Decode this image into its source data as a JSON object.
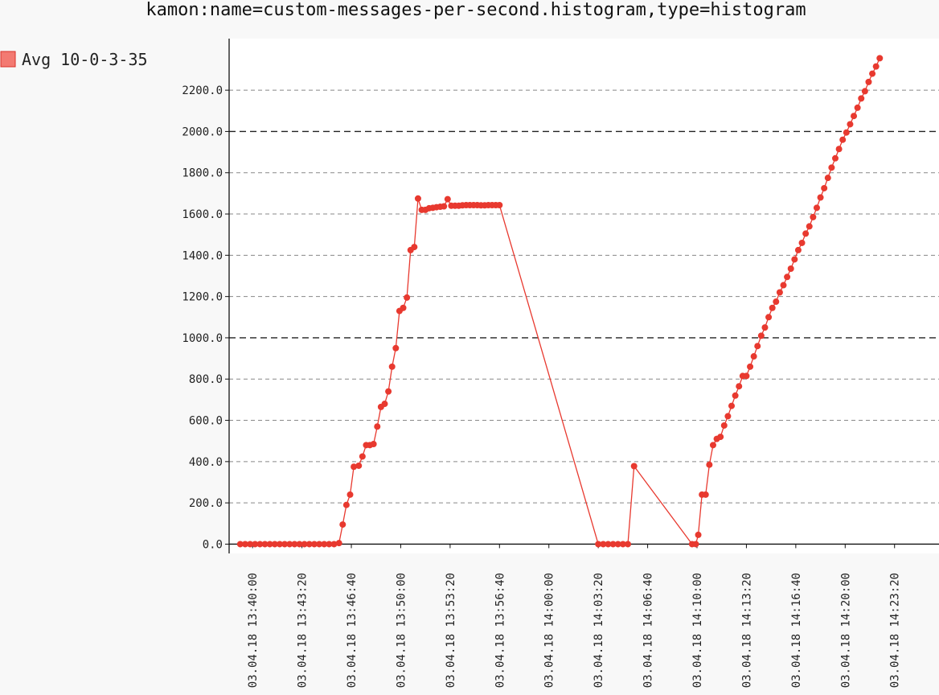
{
  "chart_data": {
    "type": "line",
    "title": "kamon:name=custom-messages-per-second.histogram,type=histogram",
    "xlabel": "",
    "ylabel": "",
    "ylim": [
      -45,
      2450
    ],
    "x_range": [
      "03.04.18 13:38:25",
      "03.04.18 14:26:20"
    ],
    "legend_position": "top-left",
    "grid": true,
    "y_ticks": [
      0,
      200,
      400,
      600,
      800,
      1000,
      1200,
      1400,
      1600,
      1800,
      2000,
      2200
    ],
    "y_tick_labels": [
      "0.0",
      "200.0",
      "400.0",
      "600.0",
      "800.0",
      "1000.0",
      "1200.0",
      "1400.0",
      "1600.0",
      "1800.0",
      "2000.0",
      "2200.0"
    ],
    "x_ticks": [
      "03.04.18 13:40:00",
      "03.04.18 13:43:20",
      "03.04.18 13:46:40",
      "03.04.18 13:50:00",
      "03.04.18 13:53:20",
      "03.04.18 13:56:40",
      "03.04.18 14:00:00",
      "03.04.18 14:03:20",
      "03.04.18 14:06:40",
      "03.04.18 14:10:00",
      "03.04.18 14:13:20",
      "03.04.18 14:16:40",
      "03.04.18 14:20:00",
      "03.04.18 14:23:20"
    ],
    "series": [
      {
        "name": "Avg 10-0-3-35",
        "color": "#e8392f",
        "legend_swatch": "#f37a72",
        "points": [
          [
            "03.04.18 13:39:10",
            0
          ],
          [
            "03.04.18 13:39:30",
            0
          ],
          [
            "03.04.18 13:39:50",
            0
          ],
          [
            "03.04.18 13:40:10",
            0
          ],
          [
            "03.04.18 13:40:30",
            0
          ],
          [
            "03.04.18 13:40:50",
            0
          ],
          [
            "03.04.18 13:41:10",
            0
          ],
          [
            "03.04.18 13:41:30",
            0
          ],
          [
            "03.04.18 13:41:50",
            0
          ],
          [
            "03.04.18 13:42:10",
            0
          ],
          [
            "03.04.18 13:42:30",
            0
          ],
          [
            "03.04.18 13:42:50",
            0
          ],
          [
            "03.04.18 13:43:10",
            0
          ],
          [
            "03.04.18 13:43:30",
            0
          ],
          [
            "03.04.18 13:43:50",
            0
          ],
          [
            "03.04.18 13:44:10",
            0
          ],
          [
            "03.04.18 13:44:30",
            0
          ],
          [
            "03.04.18 13:44:50",
            0
          ],
          [
            "03.04.18 13:45:10",
            0
          ],
          [
            "03.04.18 13:45:30",
            0
          ],
          [
            "03.04.18 13:45:50",
            5
          ],
          [
            "03.04.18 13:46:05",
            95
          ],
          [
            "03.04.18 13:46:20",
            190
          ],
          [
            "03.04.18 13:46:35",
            240
          ],
          [
            "03.04.18 13:46:50",
            375
          ],
          [
            "03.04.18 13:47:10",
            380
          ],
          [
            "03.04.18 13:47:25",
            425
          ],
          [
            "03.04.18 13:47:40",
            480
          ],
          [
            "03.04.18 13:47:55",
            480
          ],
          [
            "03.04.18 13:48:10",
            485
          ],
          [
            "03.04.18 13:48:25",
            570
          ],
          [
            "03.04.18 13:48:40",
            665
          ],
          [
            "03.04.18 13:48:55",
            680
          ],
          [
            "03.04.18 13:49:10",
            740
          ],
          [
            "03.04.18 13:49:25",
            860
          ],
          [
            "03.04.18 13:49:40",
            950
          ],
          [
            "03.04.18 13:49:55",
            1130
          ],
          [
            "03.04.18 13:50:10",
            1145
          ],
          [
            "03.04.18 13:50:25",
            1195
          ],
          [
            "03.04.18 13:50:40",
            1425
          ],
          [
            "03.04.18 13:50:55",
            1440
          ],
          [
            "03.04.18 13:51:10",
            1675
          ],
          [
            "03.04.18 13:51:25",
            1620
          ],
          [
            "03.04.18 13:51:40",
            1620
          ],
          [
            "03.04.18 13:51:55",
            1628
          ],
          [
            "03.04.18 13:52:10",
            1630
          ],
          [
            "03.04.18 13:52:25",
            1633
          ],
          [
            "03.04.18 13:52:40",
            1635
          ],
          [
            "03.04.18 13:52:55",
            1637
          ],
          [
            "03.04.18 13:53:10",
            1672
          ],
          [
            "03.04.18 13:53:25",
            1640
          ],
          [
            "03.04.18 13:53:40",
            1640
          ],
          [
            "03.04.18 13:53:55",
            1640
          ],
          [
            "03.04.18 13:54:10",
            1642
          ],
          [
            "03.04.18 13:54:25",
            1643
          ],
          [
            "03.04.18 13:54:40",
            1643
          ],
          [
            "03.04.18 13:54:55",
            1643
          ],
          [
            "03.04.18 13:55:10",
            1643
          ],
          [
            "03.04.18 13:55:25",
            1642
          ],
          [
            "03.04.18 13:55:40",
            1642
          ],
          [
            "03.04.18 13:55:55",
            1643
          ],
          [
            "03.04.18 13:56:10",
            1643
          ],
          [
            "03.04.18 13:56:25",
            1643
          ],
          [
            "03.04.18 13:56:40",
            1643
          ],
          [
            "03.04.18 14:03:20",
            0
          ],
          [
            "03.04.18 14:03:40",
            0
          ],
          [
            "03.04.18 14:04:00",
            0
          ],
          [
            "03.04.18 14:04:20",
            0
          ],
          [
            "03.04.18 14:04:40",
            0
          ],
          [
            "03.04.18 14:05:00",
            0
          ],
          [
            "03.04.18 14:05:20",
            0
          ],
          [
            "03.04.18 14:05:45",
            378
          ],
          [
            "03.04.18 14:09:40",
            0
          ],
          [
            "03.04.18 14:09:55",
            0
          ],
          [
            "03.04.18 14:10:05",
            45
          ],
          [
            "03.04.18 14:10:20",
            240
          ],
          [
            "03.04.18 14:10:35",
            240
          ],
          [
            "03.04.18 14:10:50",
            385
          ],
          [
            "03.04.18 14:11:05",
            480
          ],
          [
            "03.04.18 14:11:20",
            510
          ],
          [
            "03.04.18 14:11:35",
            520
          ],
          [
            "03.04.18 14:11:50",
            575
          ],
          [
            "03.04.18 14:12:05",
            620
          ],
          [
            "03.04.18 14:12:20",
            670
          ],
          [
            "03.04.18 14:12:35",
            720
          ],
          [
            "03.04.18 14:12:50",
            765
          ],
          [
            "03.04.18 14:13:05",
            815
          ],
          [
            "03.04.18 14:13:20",
            815
          ],
          [
            "03.04.18 14:13:35",
            860
          ],
          [
            "03.04.18 14:13:50",
            910
          ],
          [
            "03.04.18 14:14:05",
            960
          ],
          [
            "03.04.18 14:14:20",
            1010
          ],
          [
            "03.04.18 14:14:35",
            1050
          ],
          [
            "03.04.18 14:14:50",
            1100
          ],
          [
            "03.04.18 14:15:05",
            1145
          ],
          [
            "03.04.18 14:15:20",
            1175
          ],
          [
            "03.04.18 14:15:35",
            1220
          ],
          [
            "03.04.18 14:15:50",
            1255
          ],
          [
            "03.04.18 14:16:05",
            1295
          ],
          [
            "03.04.18 14:16:20",
            1335
          ],
          [
            "03.04.18 14:16:35",
            1380
          ],
          [
            "03.04.18 14:16:50",
            1425
          ],
          [
            "03.04.18 14:17:05",
            1460
          ],
          [
            "03.04.18 14:17:20",
            1505
          ],
          [
            "03.04.18 14:17:35",
            1540
          ],
          [
            "03.04.18 14:17:50",
            1585
          ],
          [
            "03.04.18 14:18:05",
            1630
          ],
          [
            "03.04.18 14:18:20",
            1680
          ],
          [
            "03.04.18 14:18:35",
            1725
          ],
          [
            "03.04.18 14:18:50",
            1775
          ],
          [
            "03.04.18 14:19:05",
            1825
          ],
          [
            "03.04.18 14:19:20",
            1870
          ],
          [
            "03.04.18 14:19:35",
            1915
          ],
          [
            "03.04.18 14:19:50",
            1960
          ],
          [
            "03.04.18 14:20:05",
            1995
          ],
          [
            "03.04.18 14:20:20",
            2035
          ],
          [
            "03.04.18 14:20:35",
            2075
          ],
          [
            "03.04.18 14:20:50",
            2115
          ],
          [
            "03.04.18 14:21:05",
            2160
          ],
          [
            "03.04.18 14:21:20",
            2195
          ],
          [
            "03.04.18 14:21:35",
            2240
          ],
          [
            "03.04.18 14:21:50",
            2280
          ],
          [
            "03.04.18 14:22:05",
            2315
          ],
          [
            "03.04.18 14:22:20",
            2355
          ]
        ]
      }
    ]
  }
}
